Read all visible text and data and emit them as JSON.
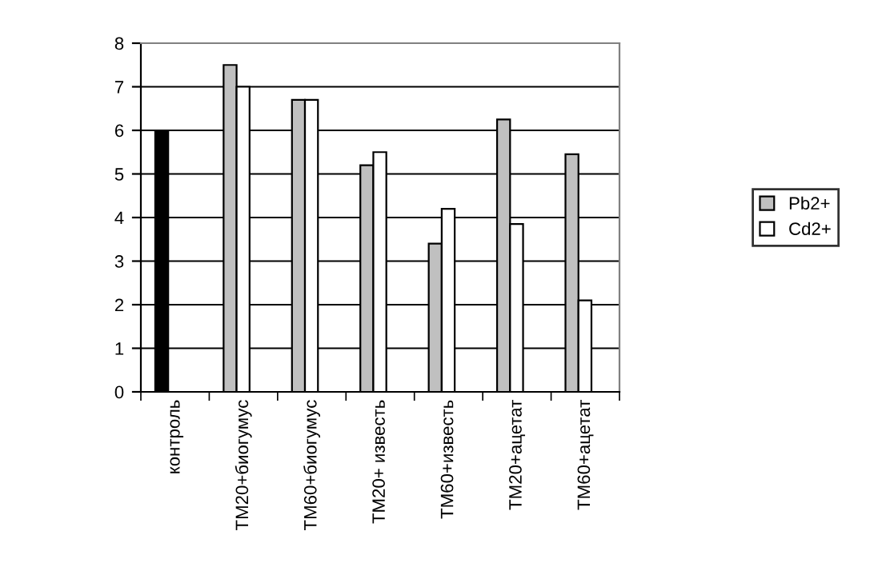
{
  "chart_data": {
    "type": "bar",
    "categories": [
      "контроль",
      "ТМ20+биогумус",
      "ТМ60+биогумус",
      "ТМ20+ известь",
      "ТМ60+известь",
      "ТМ20+ацетат",
      "ТМ60+ацетат"
    ],
    "series": [
      {
        "name": "Pb2+",
        "color": "#c0c0c0",
        "colors": [
          "#000000",
          "#c0c0c0",
          "#c0c0c0",
          "#c0c0c0",
          "#c0c0c0",
          "#c0c0c0",
          "#c0c0c0"
        ],
        "values": [
          6.0,
          7.5,
          6.7,
          5.2,
          3.4,
          6.25,
          5.45
        ]
      },
      {
        "name": "Cd2+",
        "color": "#ffffff",
        "values": [
          null,
          7.0,
          6.7,
          5.5,
          4.2,
          3.85,
          2.1
        ]
      }
    ],
    "ylim": [
      0,
      8
    ],
    "yticks": [
      0,
      1,
      2,
      3,
      4,
      5,
      6,
      7,
      8
    ],
    "grid": "y",
    "legend": "right"
  }
}
